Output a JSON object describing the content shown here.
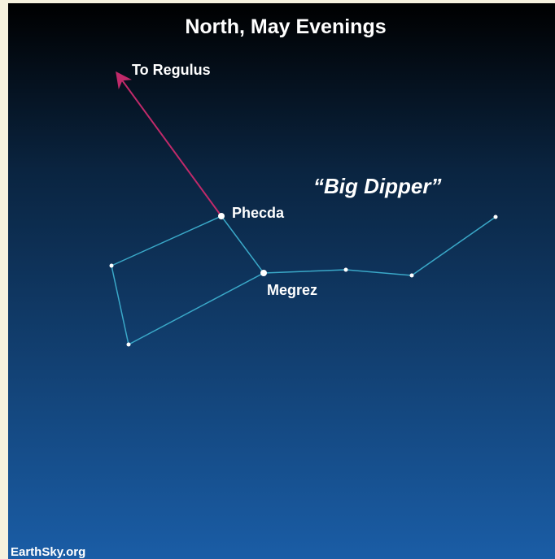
{
  "title": "North, May Evenings",
  "arrow_label": "To Regulus",
  "asterism": "“Big Dipper”",
  "stars": [
    {
      "label": "Phecda"
    },
    {
      "label": "Megrez"
    }
  ],
  "credit": "EarthSky.org"
}
